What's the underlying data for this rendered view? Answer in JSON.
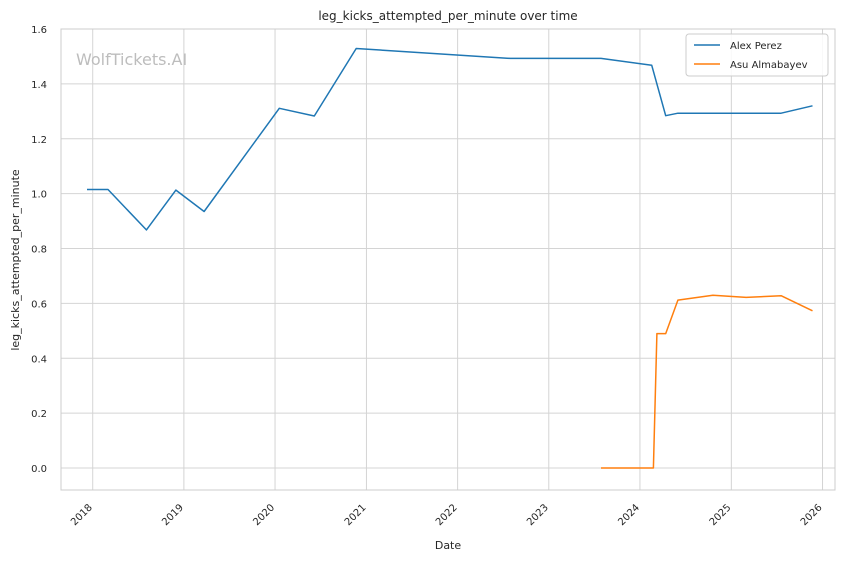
{
  "chart_data": {
    "type": "line",
    "title": "leg_kicks_attempted_per_minute over time",
    "xlabel": "Date",
    "ylabel": "leg_kicks_attempted_per_minute",
    "watermark": "WolfTickets.AI",
    "xlim": [
      "2017-08-27",
      "2026-02-20"
    ],
    "ylim": [
      -0.08,
      1.6
    ],
    "x_ticks": [
      "2018-01-01",
      "2019-01-01",
      "2020-01-01",
      "2021-01-01",
      "2022-01-01",
      "2023-01-01",
      "2024-01-01",
      "2025-01-01",
      "2026-01-01"
    ],
    "x_tick_labels": [
      "2018",
      "2019",
      "2020",
      "2021",
      "2022",
      "2023",
      "2024",
      "2025",
      "2026"
    ],
    "y_ticks": [
      0.0,
      0.2,
      0.4,
      0.6,
      0.8,
      1.0,
      1.2,
      1.4,
      1.6
    ],
    "y_tick_labels": [
      "0.0",
      "0.2",
      "0.4",
      "0.6",
      "0.8",
      "1.0",
      "1.2",
      "1.4",
      "1.6"
    ],
    "grid": true,
    "legend_position": "top-right",
    "series": [
      {
        "name": "Alex Perez",
        "color": "#1f77b4",
        "points": [
          [
            "2017-12-09",
            1.015
          ],
          [
            "2018-03-03",
            1.015
          ],
          [
            "2018-08-04",
            0.868
          ],
          [
            "2018-11-30",
            1.013
          ],
          [
            "2019-03-23",
            0.935
          ],
          [
            "2020-01-18",
            1.311
          ],
          [
            "2020-06-06",
            1.283
          ],
          [
            "2020-11-21",
            1.529
          ],
          [
            "2022-07-30",
            1.493
          ],
          [
            "2023-07-29",
            1.493
          ],
          [
            "2024-02-17",
            1.468
          ],
          [
            "2024-04-13",
            1.284
          ],
          [
            "2024-06-01",
            1.293
          ],
          [
            "2025-07-19",
            1.293
          ],
          [
            "2025-11-22",
            1.32
          ]
        ]
      },
      {
        "name": "Asu Almabayev",
        "color": "#ff7f0e",
        "points": [
          [
            "2023-07-29",
            0.0
          ],
          [
            "2024-02-24",
            0.0
          ],
          [
            "2024-03-09",
            0.49
          ],
          [
            "2024-04-13",
            0.49
          ],
          [
            "2024-06-01",
            0.612
          ],
          [
            "2024-10-19",
            0.63
          ],
          [
            "2025-03-01",
            0.622
          ],
          [
            "2025-07-19",
            0.628
          ],
          [
            "2025-11-22",
            0.573
          ]
        ]
      }
    ]
  }
}
